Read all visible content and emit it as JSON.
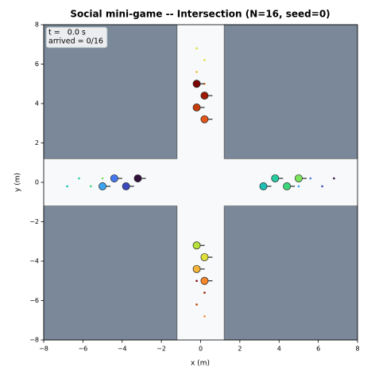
{
  "chart_data": {
    "type": "scatter",
    "title": "Social mini-game -- Intersection (N=16, seed=0)",
    "xlabel": "x (m)",
    "ylabel": "y (m)",
    "xlim": [
      -8,
      8
    ],
    "ylim": [
      -8,
      8
    ],
    "xticks": [
      {
        "value": -8,
        "label": "−8"
      },
      {
        "value": -6,
        "label": "−6"
      },
      {
        "value": -4,
        "label": "−4"
      },
      {
        "value": -2,
        "label": "−2"
      },
      0,
      2,
      4,
      6,
      8
    ],
    "yticks": [
      {
        "value": -8,
        "label": "−8"
      },
      {
        "value": -6,
        "label": "−6"
      },
      {
        "value": -4,
        "label": "−4"
      },
      {
        "value": -2,
        "label": "−2"
      },
      0,
      2,
      4,
      6,
      8
    ],
    "road_half_width": 1.2,
    "annotation": [
      "t =   0.0 s",
      "arrived = 0/16"
    ],
    "agents": {
      "x": [
        -0.2,
        0.2,
        -0.2,
        0.2,
        -0.2,
        0.2,
        -0.2,
        0.2,
        -3.2,
        -3.8,
        -4.4,
        -5.0,
        3.2,
        3.8,
        4.4,
        5.0
      ],
      "y": [
        5.0,
        4.4,
        3.8,
        3.2,
        -3.2,
        -3.8,
        -4.4,
        -5.0,
        0.2,
        -0.2,
        0.2,
        -0.2,
        -0.2,
        0.2,
        -0.2,
        0.2
      ],
      "colors": [
        "#7a0403",
        "#9b1a04",
        "#c33d0a",
        "#e2561a",
        "#b6e03a",
        "#dfe13a",
        "#f5b43a",
        "#f8862a",
        "#30123b",
        "#3b4bbd",
        "#4577f0",
        "#3ca4f0",
        "#1fbfb5",
        "#26cba0",
        "#3fd67a",
        "#7ae45a"
      ]
    },
    "goals": {
      "x": [
        -0.2,
        0.2,
        -0.2,
        0.2,
        -0.2,
        0.2,
        -0.2,
        0.2,
        5.0,
        5.6,
        6.2,
        6.8,
        -6.8,
        -6.2,
        -5.6,
        -5.0
      ],
      "y": [
        -5.0,
        -5.6,
        -6.2,
        -6.8,
        6.8,
        6.2,
        5.6,
        5.0,
        -0.2,
        0.2,
        -0.2,
        0.2,
        -0.2,
        0.2,
        -0.2,
        0.2
      ],
      "colors": [
        "#7a0403",
        "#9b1a04",
        "#c33d0a",
        "#f8862a",
        "#dfe13a",
        "#dfe13a",
        "#f5b43a",
        "#f8862a",
        "#3ca4f0",
        "#4577f0",
        "#3b4bbd",
        "#30123b",
        "#1fbfb5",
        "#26cba0",
        "#3fd67a",
        "#7ae45a"
      ]
    }
  }
}
